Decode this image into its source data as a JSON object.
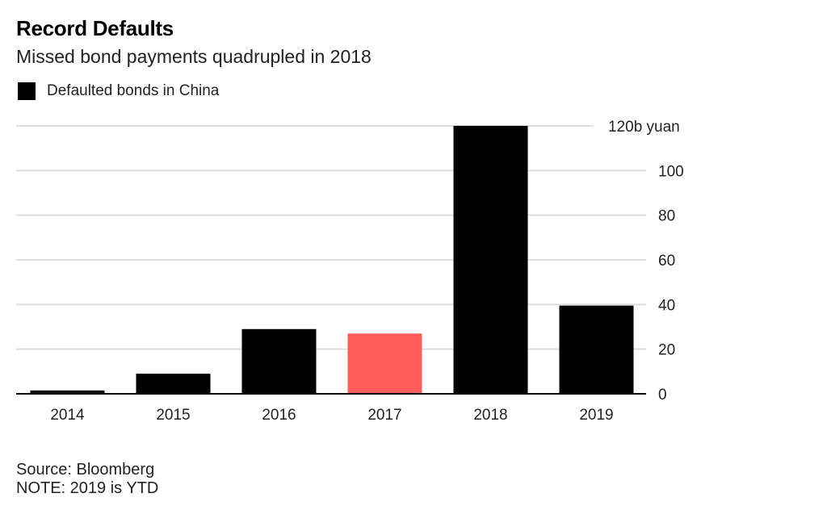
{
  "chart_data": {
    "type": "bar",
    "title": "Record Defaults",
    "subtitle": "Missed bond payments quadrupled in 2018",
    "legend": {
      "position": "top-left",
      "entries": [
        {
          "name": "Defaulted bonds in China",
          "color": "#000000"
        }
      ]
    },
    "categories": [
      "2014",
      "2015",
      "2016",
      "2017",
      "2018",
      "2019"
    ],
    "series": [
      {
        "name": "Defaulted bonds in China",
        "values": [
          1.5,
          9,
          29,
          27,
          120,
          39.5
        ]
      }
    ],
    "bar_colors": [
      "#000000",
      "#000000",
      "#000000",
      "#ff5c5c",
      "#000000",
      "#000000"
    ],
    "ylim": [
      0,
      120
    ],
    "y_ticks": [
      0,
      20,
      40,
      60,
      80,
      100,
      120
    ],
    "y_tick_labels": [
      "0",
      "20",
      "40",
      "60",
      "80",
      "100",
      "120b yuan"
    ],
    "y_axis_side": "right",
    "grid": true,
    "source": "Source: Bloomberg",
    "note": "NOTE: 2019 is YTD"
  }
}
